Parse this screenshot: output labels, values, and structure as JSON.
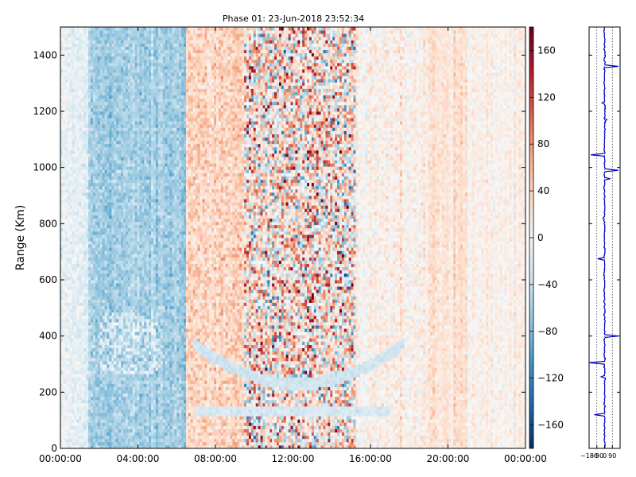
{
  "chart_data": [
    {
      "type": "heatmap",
      "title": "Phase 01: 23-Jun-2018 23:52:34",
      "ylabel": "Range (Km)",
      "xlabel": "",
      "x_tick_labels": [
        "00:00:00",
        "04:00:00",
        "08:00:00",
        "12:00:00",
        "16:00:00",
        "20:00:00",
        "00:00:00"
      ],
      "y_tick_labels": [
        "0",
        "200",
        "400",
        "600",
        "800",
        "1000",
        "1200",
        "1400"
      ],
      "x_range_hours": [
        0,
        24
      ],
      "ylim": [
        0,
        1500
      ],
      "colorbar": {
        "colormap": "RdBu_r",
        "vmin": -180,
        "vmax": 180,
        "tick_labels": [
          "−160",
          "−120",
          "−80",
          "−40",
          "0",
          "40",
          "80",
          "120",
          "160"
        ],
        "tick_values": [
          -160,
          -120,
          -80,
          -40,
          0,
          40,
          80,
          120,
          160
        ]
      },
      "pattern_bands": [
        {
          "start_hour": 0.0,
          "end_hour": 1.5,
          "mean": -18,
          "noise": 20
        },
        {
          "start_hour": 1.5,
          "end_hour": 6.5,
          "mean": -62,
          "noise": 22
        },
        {
          "start_hour": 6.5,
          "end_hour": 9.5,
          "mean": 38,
          "noise": 30
        },
        {
          "start_hour": 9.5,
          "end_hour": 15.2,
          "mean": 20,
          "noise": 110
        },
        {
          "start_hour": 15.2,
          "end_hour": 19.0,
          "mean": 10,
          "noise": 25
        },
        {
          "start_hour": 19.0,
          "end_hour": 21.0,
          "mean": 28,
          "noise": 18
        },
        {
          "start_hour": 21.0,
          "end_hour": 24.0,
          "mean": 8,
          "noise": 18
        }
      ],
      "arc_feature": {
        "center_hour": 12.3,
        "half_width_hours": 5.5,
        "min_range_km": 230,
        "max_range_km": 380,
        "value": -35
      },
      "low_band": {
        "start_hour": 7.0,
        "end_hour": 17.0,
        "range_km": [
          110,
          150
        ],
        "value": -30
      }
    },
    {
      "type": "line",
      "title": "",
      "xlabel": "",
      "ylabel": "",
      "x_tick_labels": [
        "−180",
        "−90",
        "0",
        "90"
      ],
      "x_tick_values": [
        -180,
        -90,
        0,
        90
      ],
      "xlim": [
        -180,
        180
      ],
      "ylim": [
        0,
        1500
      ],
      "grid": true,
      "series": [
        {
          "color": "#0000cc",
          "baseline": 0,
          "spikes": [
            {
              "range_km": 1360,
              "value": 160
            },
            {
              "range_km": 1045,
              "value": -160
            },
            {
              "range_km": 990,
              "value": 160
            },
            {
              "range_km": 960,
              "value": 60
            },
            {
              "range_km": 675,
              "value": -80
            },
            {
              "range_km": 400,
              "value": 160
            },
            {
              "range_km": 305,
              "value": -180
            },
            {
              "range_km": 255,
              "value": -40
            },
            {
              "range_km": 120,
              "value": -120
            },
            {
              "range_km": 1230,
              "value": -30
            },
            {
              "range_km": 1170,
              "value": 25
            },
            {
              "range_km": 820,
              "value": -20
            }
          ]
        }
      ]
    }
  ]
}
